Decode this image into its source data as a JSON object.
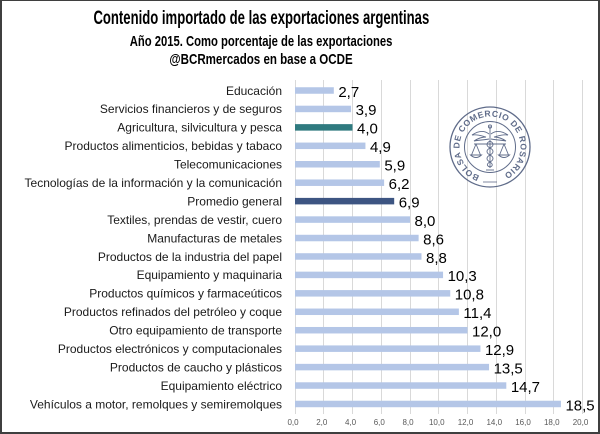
{
  "chart_data": {
    "type": "bar",
    "orientation": "horizontal",
    "title": "Contenido importado de las exportaciones argentinas",
    "subtitle": "Año 2015. Como porcentaje de las exportaciones",
    "source": "@BCRmercados en base a OCDE",
    "xlabel": "",
    "ylabel": "",
    "xlim": [
      0,
      20
    ],
    "grid": "vertical",
    "legend": "none",
    "categories": [
      "Educación",
      "Servicios financieros y de seguros",
      "Agricultura, silvicultura y pesca",
      "Productos alimenticios, bebidas y tabaco",
      "Telecomunicaciones",
      "Tecnologías de la información y la comunicación",
      "Promedio general",
      "Textiles, prendas de vestir, cuero",
      "Manufacturas de metales",
      "Productos de la industria del papel",
      "Equipamiento y maquinaria",
      "Productos químicos y farmaceúticos",
      "Productos refinados del petróleo y coque",
      "Otro equipamiento de transporte",
      "Productos electrónicos y computacionales",
      "Productos de caucho y plásticos",
      "Equipamiento eléctrico",
      "Vehículos a motor, remolques y semiremolques"
    ],
    "values": [
      2.7,
      3.9,
      4.0,
      4.9,
      5.9,
      6.2,
      6.9,
      8.0,
      8.6,
      8.8,
      10.3,
      10.8,
      11.4,
      12.0,
      12.9,
      13.5,
      14.7,
      18.5
    ],
    "value_labels": [
      "2,7",
      "3,9",
      "4,0",
      "4,9",
      "5,9",
      "6,2",
      "6,9",
      "8,0",
      "8,6",
      "8,8",
      "10,3",
      "10,8",
      "11,4",
      "12,0",
      "12,9",
      "13,5",
      "14,7",
      "18,5"
    ],
    "bar_colors": [
      "#b4c6e7",
      "#b4c6e7",
      "#2f7a7f",
      "#b4c6e7",
      "#b4c6e7",
      "#b4c6e7",
      "#3d5582",
      "#b4c6e7",
      "#b4c6e7",
      "#b4c6e7",
      "#b4c6e7",
      "#b4c6e7",
      "#b4c6e7",
      "#b4c6e7",
      "#b4c6e7",
      "#b4c6e7",
      "#b4c6e7",
      "#b4c6e7"
    ],
    "xticks": [
      0,
      2,
      4,
      6,
      8,
      10,
      12,
      14,
      16,
      18,
      20
    ],
    "xtick_labels": [
      "0,0",
      "2,0",
      "4,0",
      "6,0",
      "8,0",
      "10,0",
      "12,0",
      "14,0",
      "16,0",
      "18,0",
      "20,0"
    ]
  },
  "colors": {
    "default_bar": "#b4c6e7",
    "highlight_sector": "#2f7a7f",
    "average": "#3d5582",
    "gridline": "#d9d9d9",
    "logo": "#4f5d7e"
  },
  "logo": {
    "icon": "bolsa-de-comercio-seal-icon",
    "text": "BOLSA DE COMERCIO DE ROSARIO"
  }
}
